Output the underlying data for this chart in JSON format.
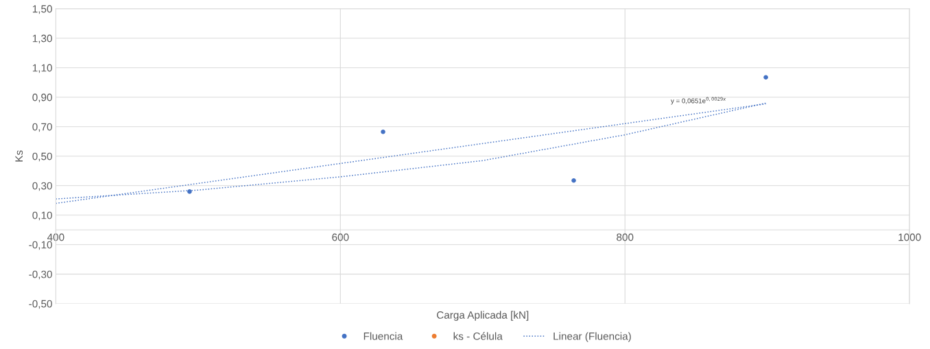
{
  "chart_data": {
    "type": "scatter",
    "xlabel": "Carga Aplicada [kN]",
    "ylabel": "Ks",
    "xlim": [
      400,
      1000
    ],
    "xticks": [
      400,
      600,
      800,
      1000
    ],
    "ylim": [
      -0.5,
      1.5
    ],
    "yticks": [
      {
        "value": -0.5,
        "label": "-0,50"
      },
      {
        "value": -0.3,
        "label": "-0,30"
      },
      {
        "value": -0.1,
        "label": "-0,10"
      },
      {
        "value": 0.1,
        "label": "0,10"
      },
      {
        "value": 0.3,
        "label": "0,30"
      },
      {
        "value": 0.5,
        "label": "0,50"
      },
      {
        "value": 0.7,
        "label": "0,70"
      },
      {
        "value": 0.9,
        "label": "0,90"
      },
      {
        "value": 1.1,
        "label": "1,10"
      },
      {
        "value": 1.3,
        "label": "1,30"
      },
      {
        "value": 1.5,
        "label": "1,50"
      }
    ],
    "grid": true,
    "legend": "bottom",
    "series": [
      {
        "name": "Fluencia",
        "color": "#4472c4",
        "marker": "circle",
        "x": [
          494,
          630,
          764,
          899
        ],
        "values": [
          0.26,
          0.665,
          0.335,
          1.035
        ]
      },
      {
        "name": "ks - Célula",
        "color": "#ed7d31",
        "marker": "circle"
      },
      {
        "name": "Linear (Fluencia)",
        "type": "line",
        "line_style": "dotted",
        "color": "#4472c4",
        "x": [
          400,
          899
        ],
        "values": [
          0.18,
          0.855
        ]
      },
      {
        "type": "line",
        "line_style": "dotted",
        "color": "#4472c4",
        "x": [
          400,
          500,
          600,
          700,
          800,
          899
        ],
        "values": [
          0.21,
          0.27,
          0.36,
          0.47,
          0.645,
          0.86
        ]
      }
    ],
    "annotations": [
      "y = 0,0651e$^{0,0029x}$"
    ]
  }
}
